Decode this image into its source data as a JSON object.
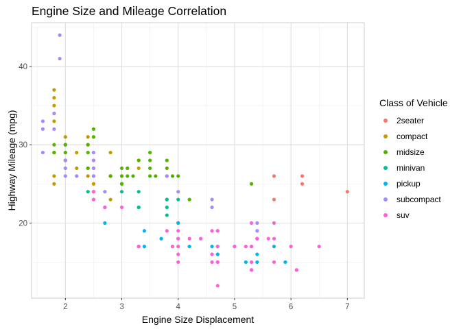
{
  "chart_data": {
    "type": "scatter",
    "title": "Engine Size and Mileage Correlation",
    "xlabel": "Engine Size Displacement",
    "ylabel": "Highway Mileage (mpg)",
    "xlim": [
      1.4,
      7.3
    ],
    "ylim": [
      10.4,
      45.6
    ],
    "x_ticks": [
      2,
      3,
      4,
      5,
      6,
      7
    ],
    "y_ticks": [
      20,
      30,
      40
    ],
    "grid": true,
    "legend_title": "Class of Vehicle",
    "legend_position": "right",
    "series": [
      {
        "name": "2seater",
        "color": "#F8766D",
        "points": [
          [
            5.7,
            26
          ],
          [
            5.7,
            23
          ],
          [
            6.2,
            26
          ],
          [
            6.2,
            25
          ],
          [
            7.0,
            24
          ]
        ]
      },
      {
        "name": "compact",
        "color": "#C49A00",
        "points": [
          [
            1.8,
            29
          ],
          [
            1.8,
            29
          ],
          [
            2.0,
            31
          ],
          [
            2.0,
            30
          ],
          [
            2.8,
            26
          ],
          [
            2.8,
            26
          ],
          [
            3.1,
            27
          ],
          [
            1.8,
            26
          ],
          [
            1.8,
            25
          ],
          [
            2.0,
            28
          ],
          [
            2.0,
            29
          ],
          [
            2.4,
            27
          ],
          [
            2.4,
            30
          ],
          [
            2.5,
            24
          ],
          [
            2.2,
            29
          ],
          [
            2.2,
            27
          ],
          [
            2.4,
            31
          ],
          [
            2.4,
            30
          ],
          [
            3.0,
            26
          ],
          [
            3.3,
            27
          ],
          [
            1.8,
            29
          ],
          [
            1.8,
            37
          ],
          [
            1.8,
            35
          ],
          [
            1.8,
            36
          ],
          [
            1.8,
            33
          ],
          [
            2.5,
            26
          ],
          [
            2.5,
            25
          ],
          [
            2.8,
            23
          ],
          [
            2.8,
            29
          ],
          [
            2.0,
            30
          ],
          [
            2.5,
            27
          ],
          [
            3.3,
            28
          ],
          [
            2.4,
            26
          ]
        ]
      },
      {
        "name": "midsize",
        "color": "#53B400",
        "points": [
          [
            2.4,
            27
          ],
          [
            2.4,
            30
          ],
          [
            2.5,
            32
          ],
          [
            2.5,
            31
          ],
          [
            2.0,
            30
          ],
          [
            2.0,
            29
          ],
          [
            2.8,
            26
          ],
          [
            3.5,
            28
          ],
          [
            3.0,
            26
          ],
          [
            3.0,
            25
          ],
          [
            3.1,
            26
          ],
          [
            3.8,
            28
          ],
          [
            3.8,
            27
          ],
          [
            3.8,
            26
          ],
          [
            3.3,
            28
          ],
          [
            3.5,
            29
          ],
          [
            3.5,
            26
          ],
          [
            4.2,
            23
          ],
          [
            5.3,
            25
          ],
          [
            2.4,
            29
          ],
          [
            3.0,
            27
          ],
          [
            3.5,
            27
          ],
          [
            3.6,
            26
          ],
          [
            3.0,
            25
          ],
          [
            3.9,
            26
          ],
          [
            4.0,
            26
          ],
          [
            1.8,
            30
          ],
          [
            1.8,
            29
          ],
          [
            2.0,
            28
          ],
          [
            2.0,
            30
          ],
          [
            2.8,
            26
          ],
          [
            3.1,
            27
          ],
          [
            3.2,
            26
          ]
        ]
      },
      {
        "name": "minivan",
        "color": "#00C094",
        "points": [
          [
            2.4,
            24
          ],
          [
            3.0,
            24
          ],
          [
            3.3,
            22
          ],
          [
            3.3,
            24
          ],
          [
            3.8,
            23
          ],
          [
            3.8,
            23
          ],
          [
            4.0,
            23
          ],
          [
            3.8,
            22
          ],
          [
            3.8,
            21
          ],
          [
            4.0,
            20
          ],
          [
            3.3,
            22
          ]
        ]
      },
      {
        "name": "pickup",
        "color": "#00B6EB",
        "points": [
          [
            2.7,
            20
          ],
          [
            2.7,
            22
          ],
          [
            3.4,
            19
          ],
          [
            3.4,
            17
          ],
          [
            3.7,
            18
          ],
          [
            3.9,
            17
          ],
          [
            4.7,
            17
          ],
          [
            4.7,
            16
          ],
          [
            4.7,
            16
          ],
          [
            5.2,
            15
          ],
          [
            5.7,
            17
          ],
          [
            5.9,
            15
          ],
          [
            4.0,
            18
          ],
          [
            4.6,
            17
          ],
          [
            5.4,
            16
          ],
          [
            4.2,
            17
          ],
          [
            4.6,
            16
          ],
          [
            5.4,
            15
          ],
          [
            4.0,
            20
          ],
          [
            4.7,
            17
          ]
        ]
      },
      {
        "name": "subcompact",
        "color": "#A58AFF",
        "points": [
          [
            1.6,
            33
          ],
          [
            1.6,
            32
          ],
          [
            1.6,
            29
          ],
          [
            1.8,
            34
          ],
          [
            1.9,
            44
          ],
          [
            1.9,
            41
          ],
          [
            2.0,
            27
          ],
          [
            2.0,
            26
          ],
          [
            2.2,
            26
          ],
          [
            2.5,
            29
          ],
          [
            2.5,
            28
          ],
          [
            2.7,
            24
          ],
          [
            3.8,
            26
          ],
          [
            4.0,
            24
          ],
          [
            4.6,
            23
          ],
          [
            4.6,
            22
          ],
          [
            5.4,
            20
          ],
          [
            5.4,
            19
          ],
          [
            2.5,
            26
          ],
          [
            2.0,
            28
          ],
          [
            1.8,
            32
          ],
          [
            1.8,
            34
          ],
          [
            2.5,
            27
          ]
        ]
      },
      {
        "name": "suv",
        "color": "#FB61D7",
        "points": [
          [
            5.3,
            20
          ],
          [
            5.3,
            15
          ],
          [
            5.7,
            20
          ],
          [
            6.0,
            17
          ],
          [
            6.1,
            14
          ],
          [
            6.5,
            17
          ],
          [
            3.8,
            19
          ],
          [
            4.0,
            19
          ],
          [
            4.7,
            19
          ],
          [
            4.7,
            17
          ],
          [
            4.0,
            15
          ],
          [
            4.0,
            18
          ],
          [
            4.4,
            18
          ],
          [
            4.6,
            15
          ],
          [
            5.0,
            17
          ],
          [
            4.7,
            15
          ],
          [
            5.7,
            15
          ],
          [
            5.2,
            17
          ],
          [
            5.4,
            18
          ],
          [
            3.3,
            17
          ],
          [
            3.3,
            17
          ],
          [
            4.0,
            17
          ],
          [
            4.7,
            15
          ],
          [
            4.7,
            19
          ],
          [
            5.7,
            18
          ],
          [
            4.2,
            18
          ],
          [
            4.7,
            12
          ],
          [
            5.3,
            14
          ],
          [
            2.5,
            23
          ],
          [
            2.5,
            24
          ],
          [
            3.9,
            17
          ],
          [
            2.7,
            22
          ],
          [
            3.0,
            22
          ],
          [
            5.6,
            18
          ],
          [
            5.3,
            17
          ],
          [
            5.4,
            18
          ],
          [
            4.6,
            19
          ],
          [
            6.1,
            14
          ],
          [
            4.0,
            16
          ],
          [
            5.0,
            17
          ],
          [
            5.4,
            18
          ],
          [
            4.6,
            16
          ],
          [
            5.3,
            14
          ],
          [
            5.3,
            17
          ]
        ]
      }
    ]
  }
}
